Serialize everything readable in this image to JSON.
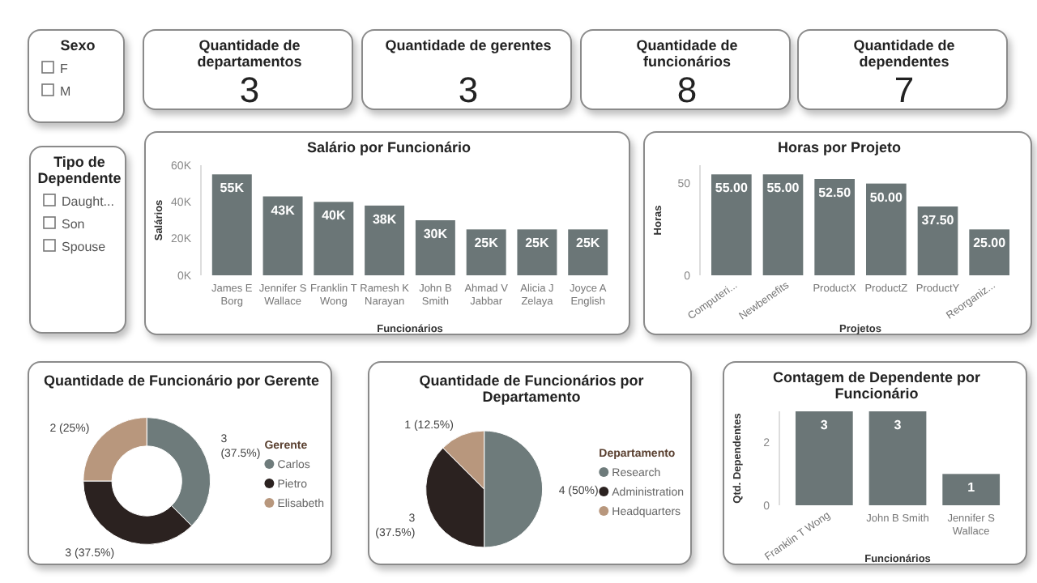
{
  "chart_data": [
    {
      "type": "other",
      "title": "Sexo",
      "categories": [
        "F",
        "M"
      ]
    },
    {
      "type": "other",
      "title": "Quantidade de departamentos",
      "values": [
        3
      ],
      "data_labels": true
    },
    {
      "type": "other",
      "title": "Quantidade de gerentes",
      "values": [
        3
      ],
      "data_labels": true
    },
    {
      "type": "other",
      "title": "Quantidade de funcionários",
      "values": [
        8
      ],
      "data_labels": true
    },
    {
      "type": "other",
      "title": "Quantidade de dependentes",
      "values": [
        7
      ],
      "data_labels": true
    },
    {
      "type": "other",
      "title": "Tipo de Dependente",
      "categories": [
        "Daught...",
        "Son",
        "Spouse"
      ]
    },
    {
      "type": "bar",
      "title": "Salário por Funcionário",
      "xlabel": "Funcionários",
      "ylabel": "Salários",
      "categories": [
        "James E Borg",
        "Jennifer S Wallace",
        "Franklin T Wong",
        "Ramesh K Narayan",
        "John B Smith",
        "Ahmad V Jabbar",
        "Alicia J Zelaya",
        "Joyce A English"
      ],
      "values": [
        55000,
        43000,
        40000,
        38000,
        30000,
        25000,
        25000,
        25000
      ],
      "value_labels": [
        "55K",
        "43K",
        "40K",
        "38K",
        "30K",
        "25K",
        "25K",
        "25K"
      ],
      "color": "#6b7677",
      "ylim": [
        0,
        60000
      ],
      "yticks": [
        {
          "value": 0,
          "label": "0K"
        },
        {
          "value": 20000,
          "label": "20K"
        },
        {
          "value": 40000,
          "label": "40K"
        },
        {
          "value": 60000,
          "label": "60K"
        }
      ]
    },
    {
      "type": "bar",
      "title": "Horas por Projeto",
      "xlabel": "Projetos",
      "ylabel": "Horas",
      "categories": [
        "Computeri...",
        "Newbenefits",
        "ProductX",
        "ProductZ",
        "ProductY",
        "Reorganiz..."
      ],
      "values": [
        55,
        55,
        52.5,
        50,
        37.5,
        25
      ],
      "value_labels": [
        "55.00",
        "55.00",
        "52.50",
        "50.00",
        "37.50",
        "25.00"
      ],
      "color": "#6b7677",
      "ylim": [
        0,
        60
      ],
      "yticks": [
        0,
        50
      ]
    },
    {
      "type": "donut",
      "title": "Quantidade de Funcionário por Gerente",
      "legend_title": "Gerente",
      "legend": "right",
      "categories": [
        "Carlos",
        "Pietro",
        "Elisabeth"
      ],
      "values": [
        3,
        3,
        2
      ],
      "value_labels": [
        "3 (37.5%)",
        "3 (37.5%)",
        "2 (25%)"
      ],
      "colors": [
        "#6e7b7b",
        "#2b2220",
        "#b8977d"
      ]
    },
    {
      "type": "pie",
      "title": "Quantidade de Funcionários por Departamento",
      "legend_title": "Departamento",
      "legend": "right",
      "categories": [
        "Research",
        "Administration",
        "Headquarters"
      ],
      "values": [
        4,
        3,
        1
      ],
      "value_labels": [
        "4 (50%)",
        "3 (37.5%)",
        "1 (12.5%)"
      ],
      "colors": [
        "#6e7b7b",
        "#2b2220",
        "#b8977d"
      ]
    },
    {
      "type": "bar",
      "title": "Contagem de Dependente por Funcionário",
      "xlabel": "Funcionários",
      "ylabel": "Qtd. Dependentes",
      "categories": [
        "Franklin T Wong",
        "John B Smith",
        "Jennifer S Wallace"
      ],
      "values": [
        3,
        3,
        1
      ],
      "data_labels": true,
      "color": "#6b7677",
      "ylim": [
        0,
        3
      ],
      "yticks": [
        0,
        2
      ]
    }
  ]
}
